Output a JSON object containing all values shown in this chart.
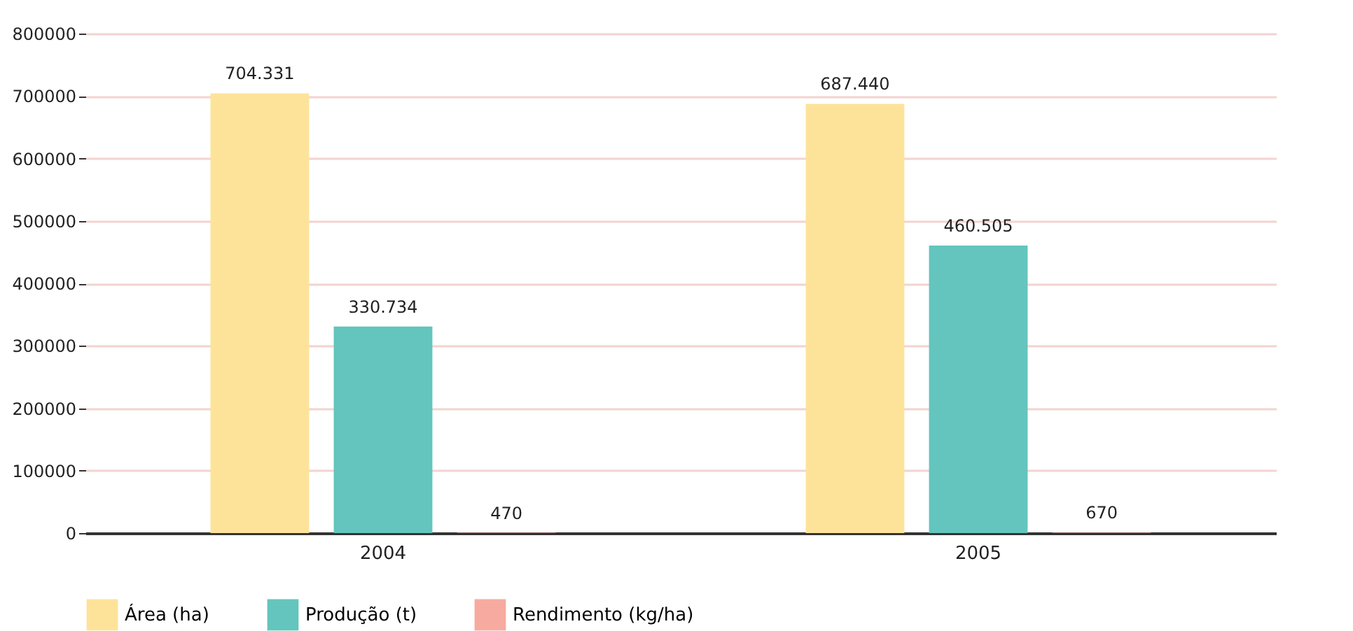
{
  "chart_data": {
    "type": "bar",
    "categories": [
      "2004",
      "2005"
    ],
    "series": [
      {
        "name": "Área (ha)",
        "color": "#fde39a",
        "values": [
          704331,
          687440
        ],
        "value_labels": [
          "704.331",
          "687.440"
        ]
      },
      {
        "name": "Produção (t)",
        "color": "#63c5bd",
        "values": [
          330734,
          460505
        ],
        "value_labels": [
          "330.734",
          "460.505"
        ]
      },
      {
        "name": "Rendimento (kg/ha)",
        "color": "#f7aaa0",
        "values": [
          470,
          670
        ],
        "value_labels": [
          "470",
          "670"
        ]
      }
    ],
    "ylim": [
      0,
      800000
    ],
    "yticks": [
      0,
      100000,
      200000,
      300000,
      400000,
      500000,
      600000,
      700000,
      800000
    ],
    "grid": "y",
    "legend": "bottom"
  }
}
